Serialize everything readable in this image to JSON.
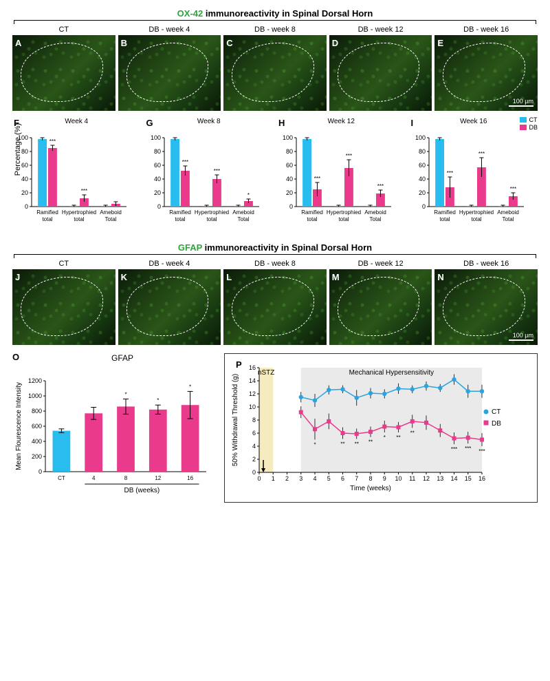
{
  "ox42": {
    "header_green": "OX-42",
    "header_rest": " immunoreactivity in Spinal Dorsal Horn",
    "panels": [
      {
        "letter": "A",
        "title": "CT"
      },
      {
        "letter": "B",
        "title": "DB - week 4"
      },
      {
        "letter": "C",
        "title": "DB - week 8"
      },
      {
        "letter": "D",
        "title": "DB - week 12"
      },
      {
        "letter": "E",
        "title": "DB - week 16"
      }
    ],
    "scale_label": "100 µm"
  },
  "morph_charts": {
    "ylabel": "Percentage (%)",
    "ylim": [
      0,
      100
    ],
    "ytick_step": 20,
    "categories": [
      "Ramified",
      "Hypertrophied",
      "Ameboid"
    ],
    "cat_sub": [
      "total",
      "total",
      "Total"
    ],
    "legend": {
      "ct": "CT",
      "db": "DB"
    },
    "ct_color": "#29bdef",
    "db_color": "#e93a8c",
    "weeks": [
      {
        "letter": "F",
        "title": "Week 4",
        "ct": [
          98,
          1,
          1
        ],
        "db": [
          85,
          12,
          4
        ],
        "ct_err": [
          2,
          1,
          1
        ],
        "db_err": [
          4,
          5,
          3
        ],
        "stars": [
          "***",
          "***",
          ""
        ]
      },
      {
        "letter": "G",
        "title": "Week 8",
        "ct": [
          98,
          1,
          1
        ],
        "db": [
          52,
          40,
          8
        ],
        "ct_err": [
          2,
          1,
          1
        ],
        "db_err": [
          7,
          6,
          3
        ],
        "stars": [
          "***",
          "***",
          "*"
        ]
      },
      {
        "letter": "H",
        "title": "Week 12",
        "ct": [
          98,
          1,
          1
        ],
        "db": [
          25,
          56,
          19
        ],
        "ct_err": [
          2,
          1,
          1
        ],
        "db_err": [
          10,
          12,
          5
        ],
        "stars": [
          "***",
          "***",
          "***"
        ]
      },
      {
        "letter": "I",
        "title": "Week 16",
        "ct": [
          98,
          1,
          1
        ],
        "db": [
          28,
          57,
          15
        ],
        "ct_err": [
          2,
          1,
          1
        ],
        "db_err": [
          15,
          14,
          5
        ],
        "stars": [
          "***",
          "***",
          "***"
        ]
      }
    ]
  },
  "gfap": {
    "header_green": "GFAP",
    "header_rest": " immunoreactivity in Spinal Dorsal Horn",
    "panels": [
      {
        "letter": "J",
        "title": "CT"
      },
      {
        "letter": "K",
        "title": "DB - week 4"
      },
      {
        "letter": "L",
        "title": "DB - week 8"
      },
      {
        "letter": "M",
        "title": "DB - week 12"
      },
      {
        "letter": "N",
        "title": "DB - week 16"
      }
    ],
    "scale_label": "100 µm",
    "bar_chart": {
      "letter": "O",
      "title": "GFAP",
      "ylabel": "Mean Flourescence Intensity",
      "ylim": [
        0,
        1200
      ],
      "ytick_step": 200,
      "categories": [
        "CT",
        "4",
        "8",
        "12",
        "16"
      ],
      "values": [
        540,
        770,
        860,
        820,
        880
      ],
      "err": [
        25,
        80,
        100,
        60,
        180
      ],
      "colors": [
        "#29bdef",
        "#e93a8c",
        "#e93a8c",
        "#e93a8c",
        "#e93a8c"
      ],
      "stars": [
        "",
        "",
        "*",
        "*",
        "*"
      ],
      "x_underline_label": "DB (weeks)"
    }
  },
  "line_chart": {
    "letter": "P",
    "nstz_label": "nSTZ",
    "hyper_label": "Mechanical Hypersensitivity",
    "ylabel": "50% Withdrawal Threshold (g)",
    "xlabel": "Time (weeks)",
    "xlim": [
      0,
      16
    ],
    "ylim": [
      0,
      16
    ],
    "ytick_step": 2,
    "xtick_step": 1,
    "nstz_band": [
      0,
      1
    ],
    "hyper_band": [
      3,
      16
    ],
    "legend": {
      "ct": "CT",
      "db": "DB"
    },
    "ct_color": "#2aa3df",
    "db_color": "#e93a8c",
    "x": [
      0,
      3,
      4,
      5,
      6,
      7,
      8,
      9,
      10,
      11,
      12,
      13,
      14,
      15,
      16
    ],
    "ct_y": [
      null,
      11.5,
      11.0,
      12.6,
      12.7,
      11.4,
      12.1,
      12.0,
      12.8,
      12.7,
      13.2,
      12.9,
      14.2,
      12.4,
      12.4
    ],
    "ct_err": [
      null,
      0.8,
      1.0,
      0.7,
      0.6,
      1.2,
      0.8,
      0.7,
      0.8,
      0.6,
      0.7,
      0.6,
      0.8,
      1.0,
      1.0
    ],
    "db_y": [
      null,
      9.2,
      6.6,
      7.8,
      6.0,
      5.9,
      6.2,
      7.0,
      6.9,
      7.8,
      7.6,
      6.4,
      5.2,
      5.3,
      5.0
    ],
    "db_err": [
      null,
      0.9,
      1.6,
      1.2,
      0.9,
      0.8,
      0.8,
      0.9,
      0.8,
      1.0,
      1.1,
      1.0,
      0.9,
      0.9,
      1.0
    ],
    "stars_x": [
      4,
      6,
      7,
      8,
      9,
      10,
      11,
      14,
      15,
      16
    ],
    "stars": [
      "*",
      "**",
      "**",
      "**",
      "*",
      "**",
      "**",
      "***",
      "***",
      "***"
    ]
  }
}
